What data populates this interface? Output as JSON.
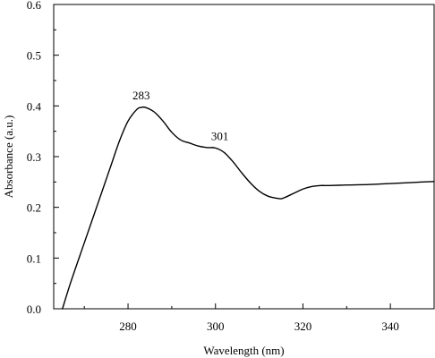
{
  "chart_data": {
    "type": "line",
    "title": "",
    "xlabel": "Wavelength (nm)",
    "ylabel": "Absorbance (a.u.)",
    "xlim": [
      263,
      350
    ],
    "ylim": [
      0.0,
      0.6
    ],
    "x_ticks": [
      280,
      300,
      320,
      340
    ],
    "x_tick_labels": [
      "280",
      "300",
      "320",
      "340"
    ],
    "y_ticks": [
      0.0,
      0.1,
      0.2,
      0.3,
      0.4,
      0.5,
      0.6
    ],
    "y_tick_labels": [
      "0.0",
      "0.1",
      "0.2",
      "0.3",
      "0.4",
      "0.5",
      "0.6"
    ],
    "grid": false,
    "legend": "none",
    "line_color": "#000000",
    "series": [
      {
        "x": [
          265,
          267,
          270,
          273,
          276,
          278,
          280,
          282,
          283,
          284,
          286,
          288,
          290,
          292,
          294,
          296,
          298,
          300,
          302,
          304,
          306,
          308,
          310,
          312,
          314,
          315,
          316,
          318,
          320,
          322,
          324,
          326,
          330,
          335,
          340,
          345,
          350
        ],
        "y": [
          0.0,
          0.055,
          0.13,
          0.205,
          0.28,
          0.33,
          0.37,
          0.393,
          0.397,
          0.397,
          0.388,
          0.37,
          0.348,
          0.333,
          0.327,
          0.321,
          0.318,
          0.317,
          0.308,
          0.29,
          0.268,
          0.248,
          0.232,
          0.222,
          0.218,
          0.217,
          0.22,
          0.228,
          0.236,
          0.241,
          0.243,
          0.243,
          0.244,
          0.245,
          0.247,
          0.249,
          0.251
        ]
      }
    ],
    "annotations": [
      {
        "text": "283",
        "x": 283,
        "y": 0.397
      },
      {
        "text": "301",
        "x": 301,
        "y": 0.317
      }
    ]
  }
}
